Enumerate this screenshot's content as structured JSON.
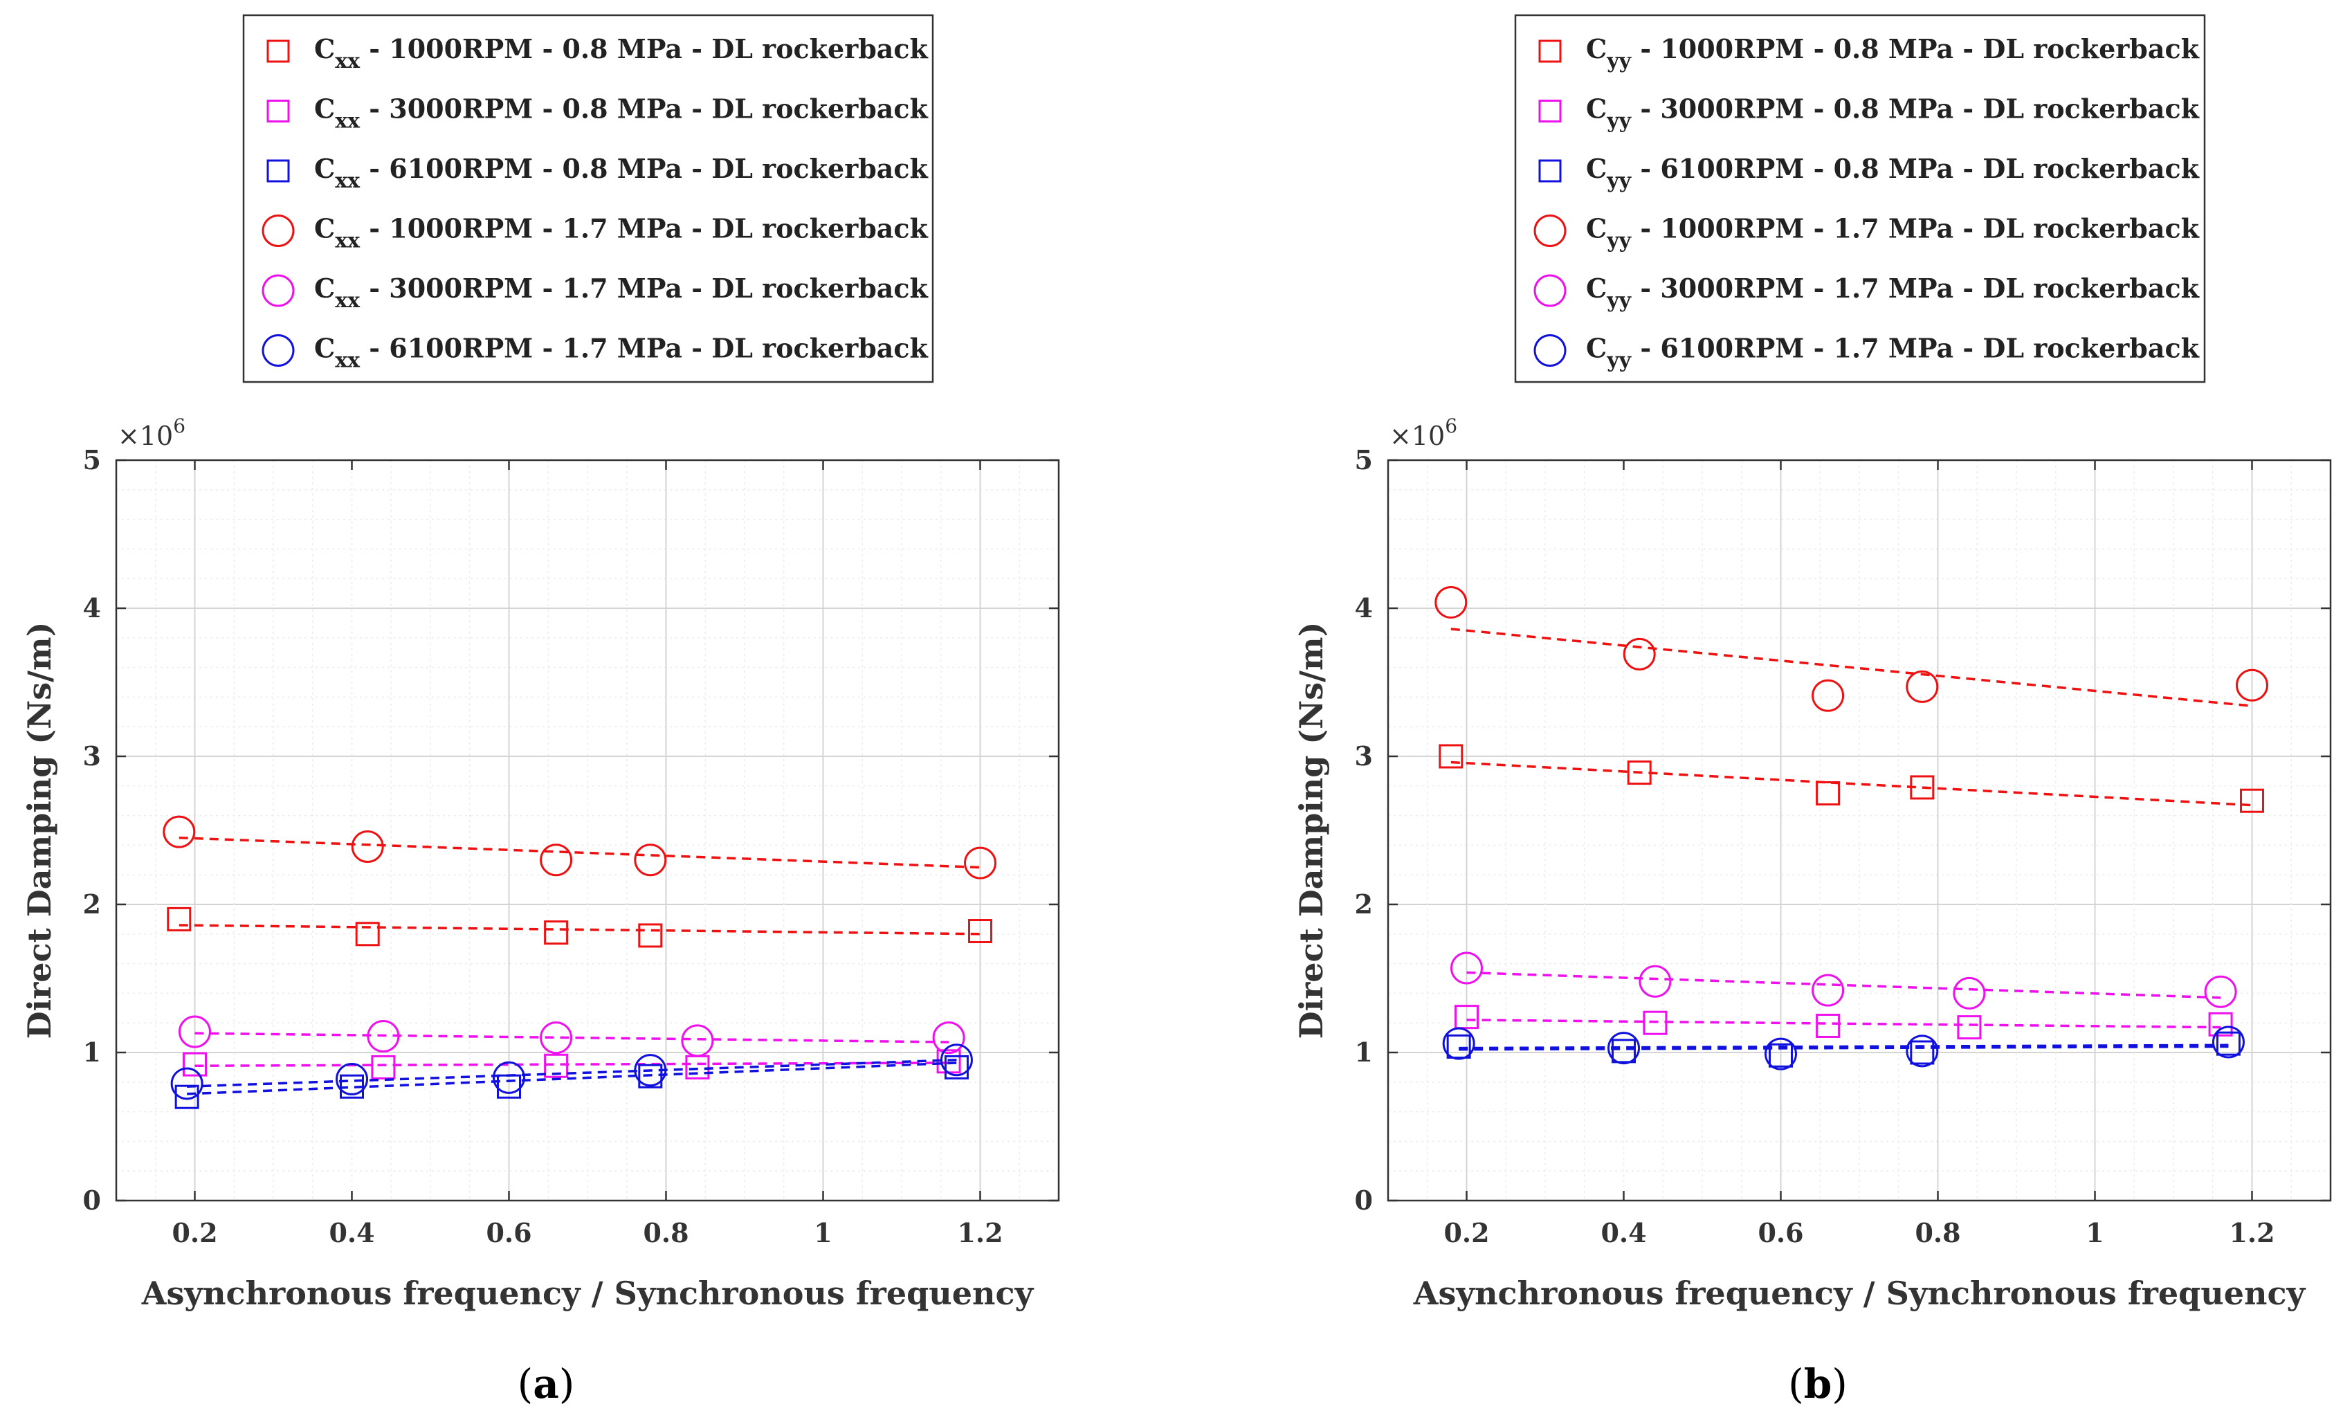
{
  "chart_data": [
    {
      "type": "scatter",
      "panel_label": "a",
      "title": "",
      "xlabel": "Asynchronous frequency / Synchronous frequency",
      "ylabel": "Direct Damping (Ns/m)",
      "y_multiplier": "×10",
      "y_multiplier_exp": "6",
      "xlim": [
        0.1,
        1.3
      ],
      "ylim": [
        0,
        5
      ],
      "xticks": [
        0.2,
        0.4,
        0.6,
        0.8,
        1.0,
        1.2
      ],
      "xtick_labels": [
        "0.2",
        "0.4",
        "0.6",
        "0.8",
        "1",
        "1.2"
      ],
      "yticks": [
        0,
        1,
        2,
        3,
        4,
        5
      ],
      "ytick_labels": [
        "0",
        "1",
        "2",
        "3",
        "4",
        "5"
      ],
      "grid": true,
      "legend_position": "top, outside",
      "series": [
        {
          "name_main": "C",
          "name_sub": "xx",
          "name_rest": " - 1000RPM - 0.8 MPa - DL rockerback",
          "marker": "square",
          "color": "#ee1111",
          "x": [
            0.18,
            0.42,
            0.66,
            0.78,
            1.2
          ],
          "values": [
            1.9,
            1.8,
            1.81,
            1.79,
            1.82
          ],
          "trend": [
            1.86,
            1.8
          ]
        },
        {
          "name_main": "C",
          "name_sub": "xx",
          "name_rest": " - 3000RPM - 0.8 MPa - DL rockerback",
          "marker": "square",
          "color": "#ee11ee",
          "x": [
            0.2,
            0.44,
            0.66,
            0.84,
            1.16
          ],
          "values": [
            0.92,
            0.9,
            0.91,
            0.9,
            0.94
          ],
          "trend": [
            0.91,
            0.93
          ]
        },
        {
          "name_main": "C",
          "name_sub": "xx",
          "name_rest": " - 6100RPM - 0.8 MPa - DL rockerback",
          "marker": "square",
          "color": "#1111dd",
          "x": [
            0.19,
            0.4,
            0.6,
            0.78,
            1.17
          ],
          "values": [
            0.7,
            0.77,
            0.77,
            0.84,
            0.9
          ],
          "trend": [
            0.72,
            0.93
          ]
        },
        {
          "name_main": "C",
          "name_sub": "xx",
          "name_rest": " - 1000RPM - 1.7 MPa - DL rockerback",
          "marker": "circle",
          "color": "#ee1111",
          "x": [
            0.18,
            0.42,
            0.66,
            0.78,
            1.2
          ],
          "values": [
            2.49,
            2.39,
            2.3,
            2.3,
            2.28
          ],
          "trend": [
            2.45,
            2.25
          ]
        },
        {
          "name_main": "C",
          "name_sub": "xx",
          "name_rest": " - 3000RPM - 1.7 MPa - DL rockerback",
          "marker": "circle",
          "color": "#ee11ee",
          "x": [
            0.2,
            0.44,
            0.66,
            0.84,
            1.16
          ],
          "values": [
            1.14,
            1.11,
            1.1,
            1.08,
            1.1
          ],
          "trend": [
            1.13,
            1.07
          ]
        },
        {
          "name_main": "C",
          "name_sub": "xx",
          "name_rest": " - 6100RPM - 1.7 MPa - DL rockerback",
          "marker": "circle",
          "color": "#1111dd",
          "x": [
            0.19,
            0.4,
            0.6,
            0.78,
            1.17
          ],
          "values": [
            0.79,
            0.82,
            0.83,
            0.88,
            0.95
          ],
          "trend": [
            0.77,
            0.95
          ]
        }
      ]
    },
    {
      "type": "scatter",
      "panel_label": "b",
      "title": "",
      "xlabel": "Asynchronous frequency / Synchronous frequency",
      "ylabel": "Direct Damping (Ns/m)",
      "y_multiplier": "×10",
      "y_multiplier_exp": "6",
      "xlim": [
        0.1,
        1.3
      ],
      "ylim": [
        0,
        5
      ],
      "xticks": [
        0.2,
        0.4,
        0.6,
        0.8,
        1.0,
        1.2
      ],
      "xtick_labels": [
        "0.2",
        "0.4",
        "0.6",
        "0.8",
        "1",
        "1.2"
      ],
      "yticks": [
        0,
        1,
        2,
        3,
        4,
        5
      ],
      "ytick_labels": [
        "0",
        "1",
        "2",
        "3",
        "4",
        "5"
      ],
      "grid": true,
      "legend_position": "top, outside",
      "series": [
        {
          "name_main": "C",
          "name_sub": "yy",
          "name_rest": " - 1000RPM - 0.8 MPa - DL rockerback",
          "marker": "square",
          "color": "#ee1111",
          "x": [
            0.18,
            0.42,
            0.66,
            0.78,
            1.2
          ],
          "values": [
            3.0,
            2.89,
            2.75,
            2.79,
            2.7
          ],
          "trend": [
            2.96,
            2.67
          ]
        },
        {
          "name_main": "C",
          "name_sub": "yy",
          "name_rest": " - 3000RPM - 0.8 MPa - DL rockerback",
          "marker": "square",
          "color": "#ee11ee",
          "x": [
            0.2,
            0.44,
            0.66,
            0.84,
            1.16
          ],
          "values": [
            1.24,
            1.2,
            1.18,
            1.17,
            1.19
          ],
          "trend": [
            1.22,
            1.17
          ]
        },
        {
          "name_main": "C",
          "name_sub": "yy",
          "name_rest": " - 6100RPM - 0.8 MPa - DL rockerback",
          "marker": "square",
          "color": "#1111dd",
          "x": [
            0.19,
            0.4,
            0.6,
            0.78,
            1.17
          ],
          "values": [
            1.04,
            1.01,
            0.98,
            1.0,
            1.06
          ],
          "trend": [
            1.02,
            1.04
          ]
        },
        {
          "name_main": "C",
          "name_sub": "yy",
          "name_rest": " - 1000RPM - 1.7 MPa - DL rockerback",
          "marker": "circle",
          "color": "#ee1111",
          "x": [
            0.18,
            0.42,
            0.66,
            0.78,
            1.2
          ],
          "values": [
            4.04,
            3.69,
            3.41,
            3.47,
            3.48
          ],
          "trend": [
            3.86,
            3.34
          ]
        },
        {
          "name_main": "C",
          "name_sub": "yy",
          "name_rest": " - 3000RPM - 1.7 MPa - DL rockerback",
          "marker": "circle",
          "color": "#ee11ee",
          "x": [
            0.2,
            0.44,
            0.66,
            0.84,
            1.16
          ],
          "values": [
            1.57,
            1.48,
            1.42,
            1.4,
            1.41
          ],
          "trend": [
            1.54,
            1.37
          ]
        },
        {
          "name_main": "C",
          "name_sub": "yy",
          "name_rest": " - 6100RPM - 1.7 MPa - DL rockerback",
          "marker": "circle",
          "color": "#1111dd",
          "x": [
            0.19,
            0.4,
            0.6,
            0.78,
            1.17
          ],
          "values": [
            1.06,
            1.03,
            0.99,
            1.01,
            1.07
          ],
          "trend": [
            1.03,
            1.05
          ]
        }
      ]
    }
  ]
}
